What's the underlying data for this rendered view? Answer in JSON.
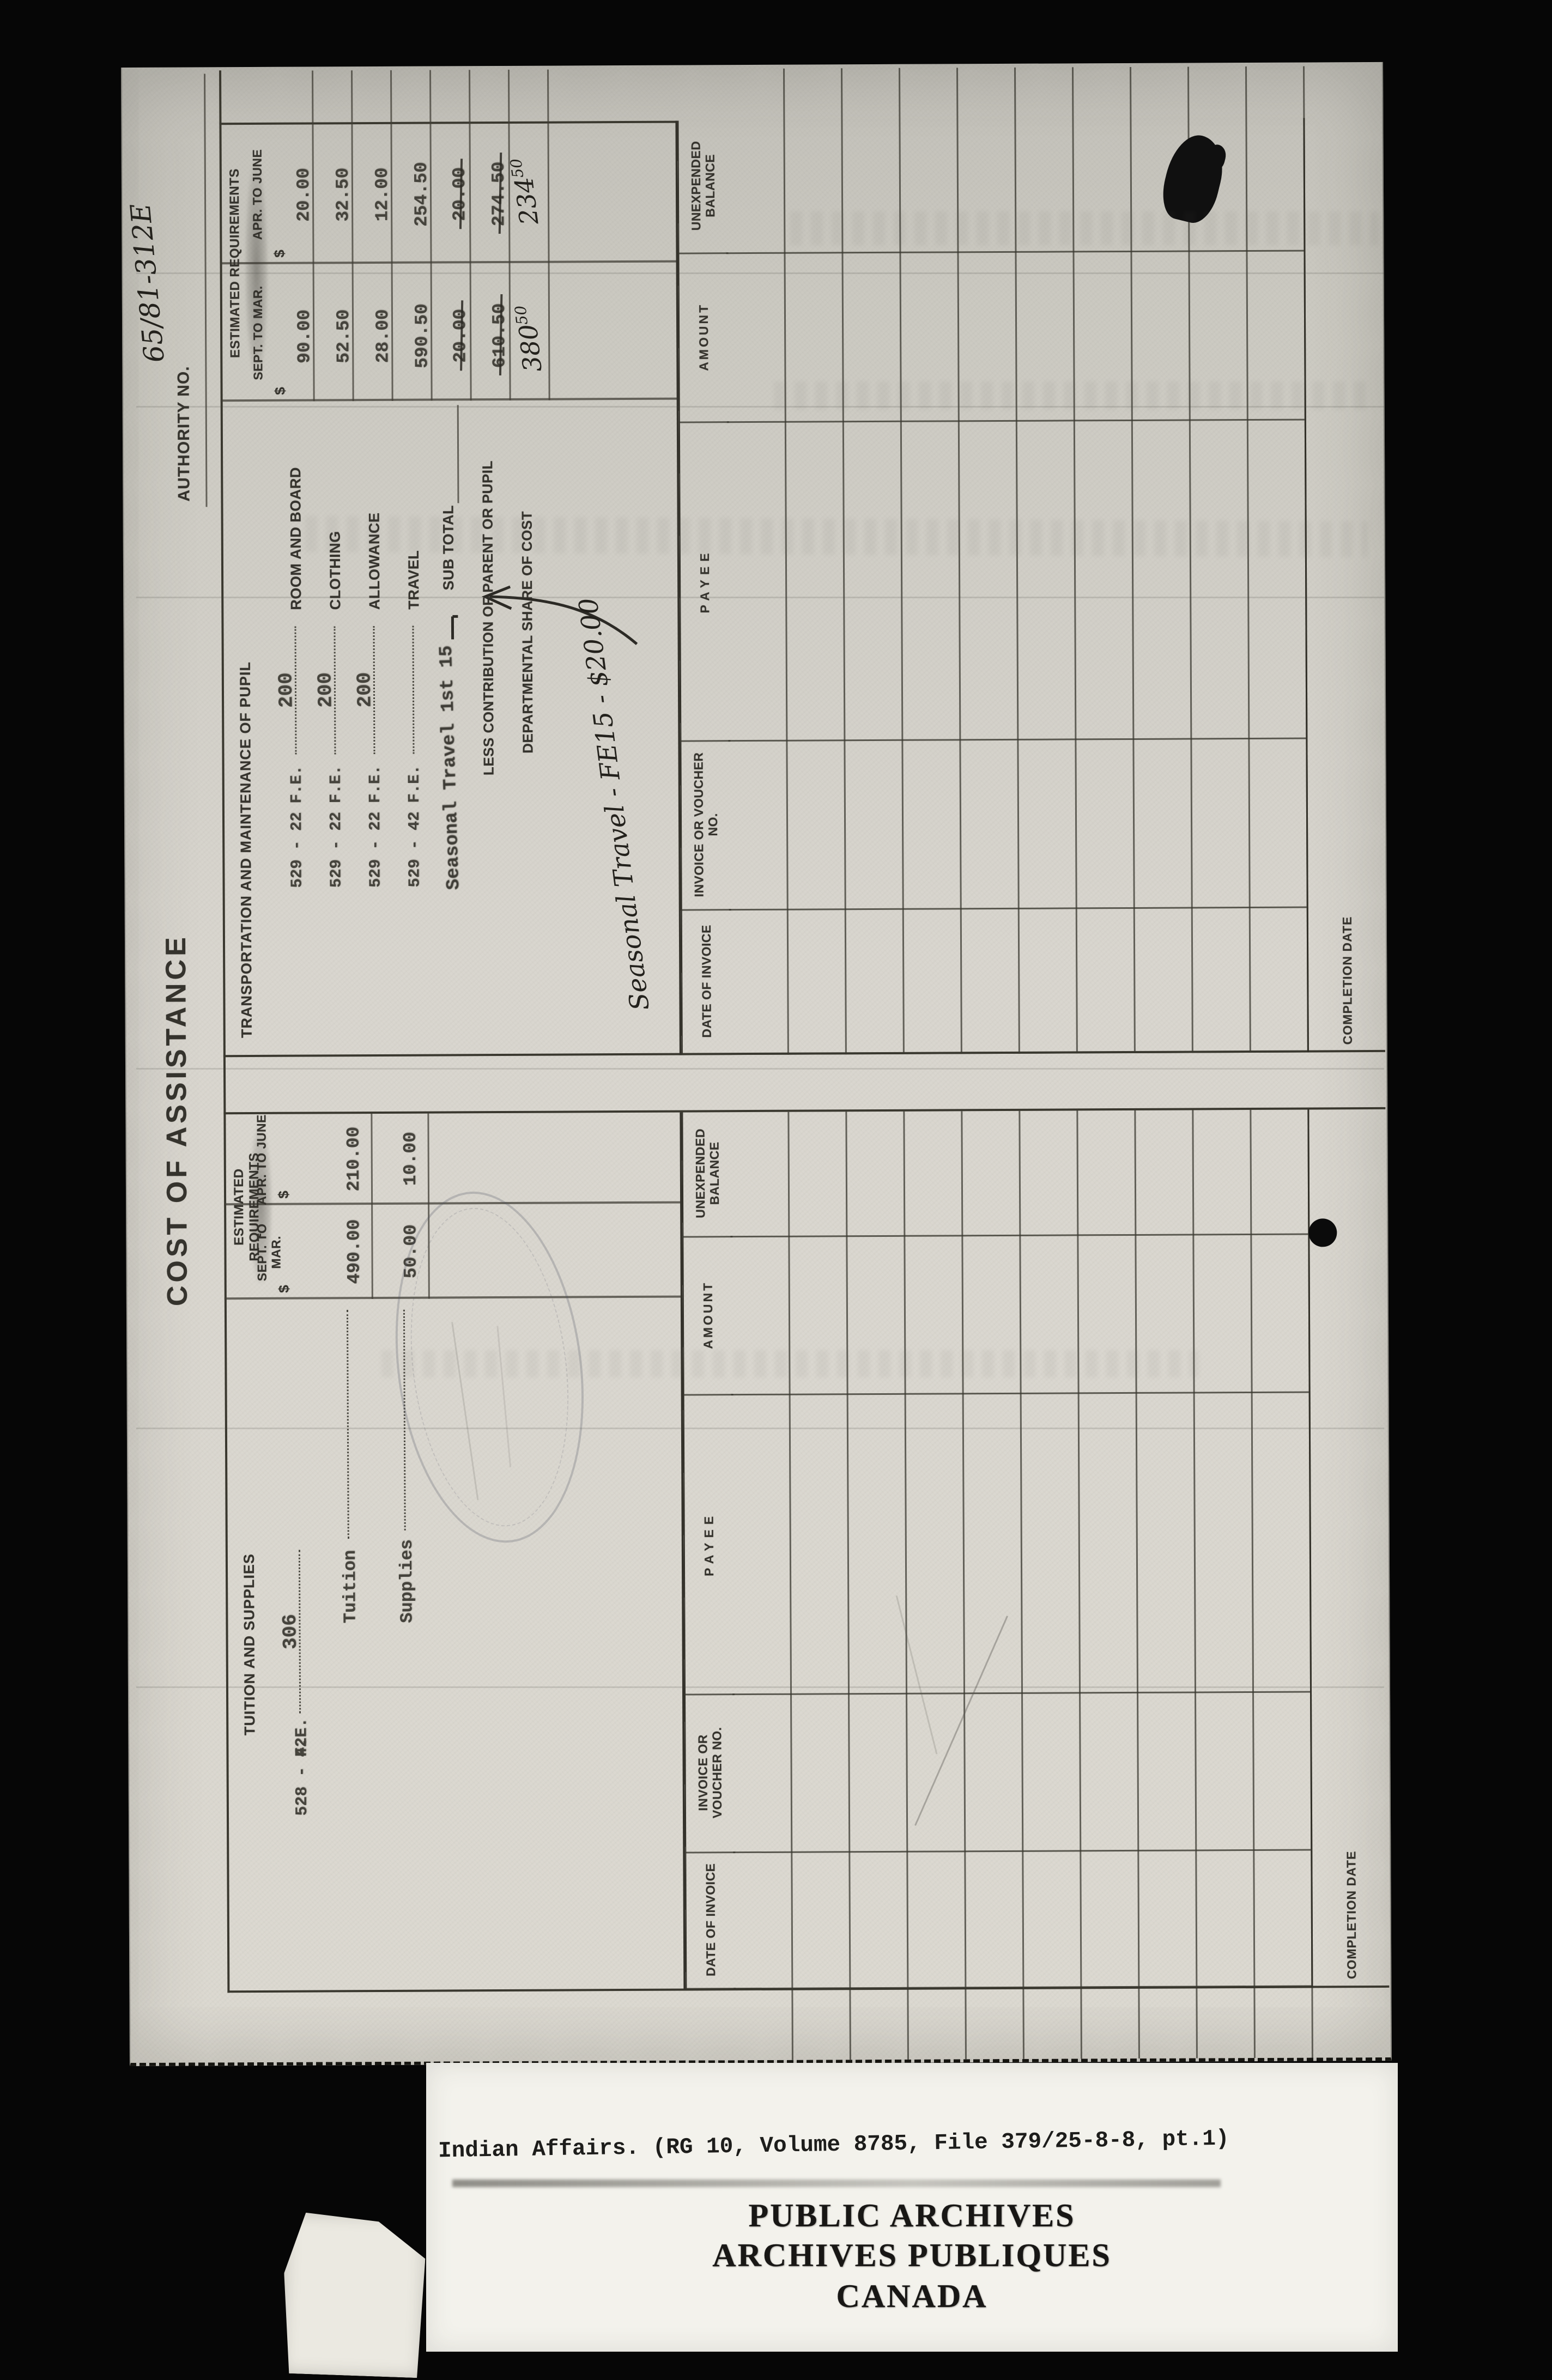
{
  "form": {
    "title": "COST OF ASSISTANCE",
    "authority": {
      "label": "AUTHORITY NO.",
      "value": "65/81-312E"
    },
    "columns": {
      "header": "ESTIMATED REQUIREMENTS",
      "sept": "SEPT. TO MAR.",
      "apr": "APR. TO JUNE",
      "currency": "$"
    },
    "tuition": {
      "heading": "TUITION AND SUPPLIES",
      "code": "528 - 42",
      "fe": "F.E.",
      "fe_value": "306",
      "rows": [
        {
          "label": "Tuition",
          "sept": "490.00",
          "apr": "210.00"
        },
        {
          "label": "Supplies",
          "sept": "50.00",
          "apr": "10.00"
        }
      ]
    },
    "transport": {
      "heading": "TRANSPORTATION AND MAINTENANCE OF PUPIL",
      "rows": [
        {
          "code": "529 - 22",
          "fe": "F.E.",
          "fe_value": "200",
          "label": "ROOM AND BOARD",
          "sept": "90.00",
          "apr": "20.00"
        },
        {
          "code": "529 - 22",
          "fe": "F.E.",
          "fe_value": "200",
          "label": "CLOTHING",
          "sept": "52.50",
          "apr": "32.50"
        },
        {
          "code": "529 - 22",
          "fe": "F.E.",
          "fe_value": "200",
          "label": "ALLOWANCE",
          "sept": "28.00",
          "apr": "12.00"
        },
        {
          "code": "529 - 42",
          "fe": "F.E.",
          "fe_value": "",
          "label": "TRAVEL",
          "sept": "590.50",
          "apr": "254.50"
        }
      ],
      "sub_total": {
        "label": "SUB TOTAL",
        "sept": "20.00",
        "apr": "20.00"
      },
      "less_contribution": {
        "label": "LESS CONTRIBUTION OF PARENT OR PUPIL",
        "sept": "610.50",
        "apr": "274.50"
      },
      "dept_share": {
        "label": "DEPARTMENTAL SHARE OF COST",
        "sept_main": "380",
        "sept_sup": "50",
        "apr_main": "234",
        "apr_sup": "50"
      }
    },
    "annotations": {
      "seasonal_stamp": "Seasonal Travel 1st 15",
      "seasonal_note": "Seasonal Travel - FE15 - $20.00"
    },
    "ledger": {
      "headers": [
        "DATE OF INVOICE",
        "INVOICE OR VOUCHER NO.",
        "PAYEE",
        "AMOUNT",
        "UNEXPENDED BALANCE"
      ],
      "completion": "COMPLETION DATE"
    }
  },
  "caption": {
    "text": "Indian Affairs. (RG 10, Volume 8785, File 379/25-8-8, pt.1)"
  },
  "archive_stamp": {
    "line1": "PUBLIC ARCHIVES",
    "line2": "ARCHIVES PUBLIQUES",
    "line3": "CANADA"
  }
}
